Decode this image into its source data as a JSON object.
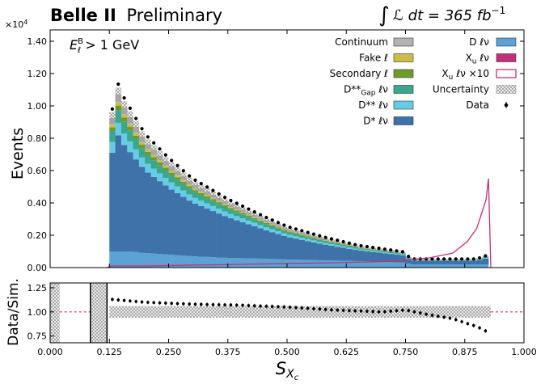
{
  "figure": {
    "title_bold": "Belle II",
    "title_rest": "Preliminary",
    "lumi_prefix": "∫",
    "lumi_text": "ℒ dt = 365 fb",
    "lumi_exp": "−1",
    "exponent_label": "×10",
    "exponent_power": "4",
    "cut_main": "E",
    "cut_sup": "B",
    "cut_sub": "ℓ",
    "cut_rest": " > 1 GeV",
    "colors": {
      "continuum": "#b3b3b3",
      "fake": "#cdbd47",
      "secondary": "#6e9b2d",
      "dstarstar_gap": "#3aa88e",
      "dstarstar": "#67cbe6",
      "dstar": "#3f72a8",
      "d": "#5aa3d4",
      "xu": "#c2307a",
      "xu_line": "#c2307a",
      "data": "#000000",
      "uncertainty": "#9a9a9a"
    }
  },
  "legend": {
    "left": [
      {
        "key": "continuum",
        "label": "Continuum"
      },
      {
        "key": "fake",
        "label": "Fake ℓ"
      },
      {
        "key": "secondary",
        "label": "Secondary ℓ"
      },
      {
        "key": "dstarstar_gap",
        "label": "D**_Gap ℓν"
      },
      {
        "key": "dstarstar",
        "label": "D** ℓν"
      },
      {
        "key": "dstar",
        "label": "D* ℓν"
      }
    ],
    "right": [
      {
        "key": "d",
        "label": "D ℓν"
      },
      {
        "key": "xu",
        "label": "X_u ℓν"
      },
      {
        "key": "xu_line",
        "label": "X_u ℓν ×10"
      },
      {
        "key": "uncertainty",
        "label": "Uncertainty"
      },
      {
        "key": "data",
        "label": "Data"
      }
    ]
  },
  "chart_data": [
    {
      "type": "stacked-histogram",
      "ylabel": "Events",
      "ylim": [
        0,
        1.42
      ],
      "y_scale_note": "×10^4",
      "yticks": [
        "0.00",
        "0.20",
        "0.40",
        "0.60",
        "0.80",
        "1.00",
        "1.20",
        "1.40"
      ],
      "ytick_values": [
        0,
        0.2,
        0.4,
        0.6,
        0.8,
        1.0,
        1.2,
        1.4
      ],
      "xlim": [
        0,
        1
      ],
      "bin_width": 0.0125,
      "stack_order": [
        "dstar",
        "dstarstar",
        "dstarstar_gap",
        "secondary",
        "fake",
        "continuum"
      ],
      "series_anchor_x": [
        0.12,
        0.125,
        0.13,
        0.14,
        0.15,
        0.175,
        0.2,
        0.25,
        0.3,
        0.375,
        0.45,
        0.5,
        0.575,
        0.65,
        0.7,
        0.75,
        0.76,
        0.8,
        0.85,
        0.9,
        0.92,
        0.93
      ],
      "total_anchor_y": [
        0.0,
        0.16,
        0.9,
        1.1,
        1.02,
        0.9,
        0.78,
        0.64,
        0.52,
        0.4,
        0.3,
        0.24,
        0.18,
        0.13,
        0.11,
        0.09,
        0.05,
        0.05,
        0.05,
        0.05,
        0.07,
        0.0
      ],
      "dstar_fraction": 0.74,
      "dstarstar_fraction": 0.08,
      "dstarstar_gap_fraction": 0.08,
      "secondary_fraction": 0.03,
      "fake_fraction": 0.02,
      "continuum_fraction": 0.05,
      "d_anchor_y": [
        0.0,
        0.07,
        0.1,
        0.1,
        0.1,
        0.1,
        0.09,
        0.08,
        0.07,
        0.06,
        0.055,
        0.05,
        0.045,
        0.04,
        0.035,
        0.03,
        0.02,
        0.02,
        0.02,
        0.02,
        0.02,
        0.0
      ],
      "xu_line_points": [
        [
          0.12,
          0.0
        ],
        [
          0.13,
          0.01
        ],
        [
          0.2,
          0.01
        ],
        [
          0.4,
          0.02
        ],
        [
          0.6,
          0.03
        ],
        [
          0.74,
          0.04
        ],
        [
          0.76,
          0.05
        ],
        [
          0.8,
          0.06
        ],
        [
          0.85,
          0.09
        ],
        [
          0.88,
          0.16
        ],
        [
          0.9,
          0.24
        ],
        [
          0.91,
          0.33
        ],
        [
          0.92,
          0.42
        ],
        [
          0.925,
          0.55
        ],
        [
          0.93,
          0.0
        ]
      ],
      "data_excess": 1.06
    },
    {
      "type": "scatter",
      "ylabel": "Data/Sim.",
      "ylim": [
        0.68,
        1.3
      ],
      "yticks": [
        "0.75",
        "1.00",
        "1.25"
      ],
      "ytick_values": [
        0.75,
        1.0,
        1.25
      ],
      "xlim": [
        0,
        1
      ],
      "xticks": [
        "0.000",
        "0.125",
        "0.250",
        "0.375",
        "0.500",
        "0.625",
        "0.750",
        "0.875",
        "1.000"
      ],
      "xtick_values": [
        0,
        0.125,
        0.25,
        0.375,
        0.5,
        0.625,
        0.75,
        0.875,
        1.0
      ],
      "xlabel": "S",
      "xlabel_sub": "X",
      "xlabel_subsub": "c",
      "ratio_anchor_x": [
        0.13,
        0.2,
        0.3,
        0.4,
        0.5,
        0.6,
        0.7,
        0.75,
        0.8,
        0.85,
        0.88,
        0.9,
        0.92
      ],
      "ratio_anchor_y": [
        1.13,
        1.1,
        1.08,
        1.07,
        1.05,
        1.02,
        1.0,
        1.02,
        0.97,
        0.93,
        0.88,
        0.85,
        0.8
      ]
    }
  ]
}
